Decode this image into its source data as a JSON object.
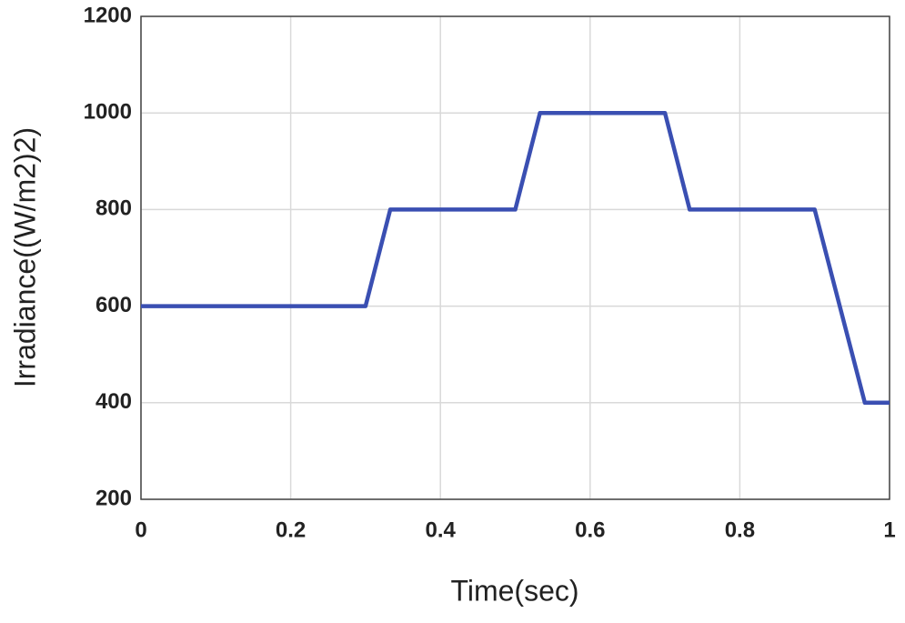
{
  "chart_data": {
    "type": "line",
    "x_label": "Time(sec)",
    "y_label": "Irradiance((W/m2)2)",
    "x": [
      0,
      0.3,
      0.333,
      0.5,
      0.533,
      0.7,
      0.733,
      0.9,
      0.967,
      1
    ],
    "series": [
      {
        "name": "Irradiance",
        "color": "#3a4fb2",
        "values": [
          600,
          600,
          800,
          800,
          1000,
          1000,
          800,
          800,
          400,
          400
        ]
      }
    ],
    "xlim": [
      0,
      1
    ],
    "xticks": [
      0,
      0.2,
      0.4,
      0.6,
      0.8,
      1
    ],
    "ylim": [
      200,
      1200
    ],
    "yticks": [
      200,
      400,
      600,
      800,
      1000,
      1200
    ],
    "grid": true
  }
}
